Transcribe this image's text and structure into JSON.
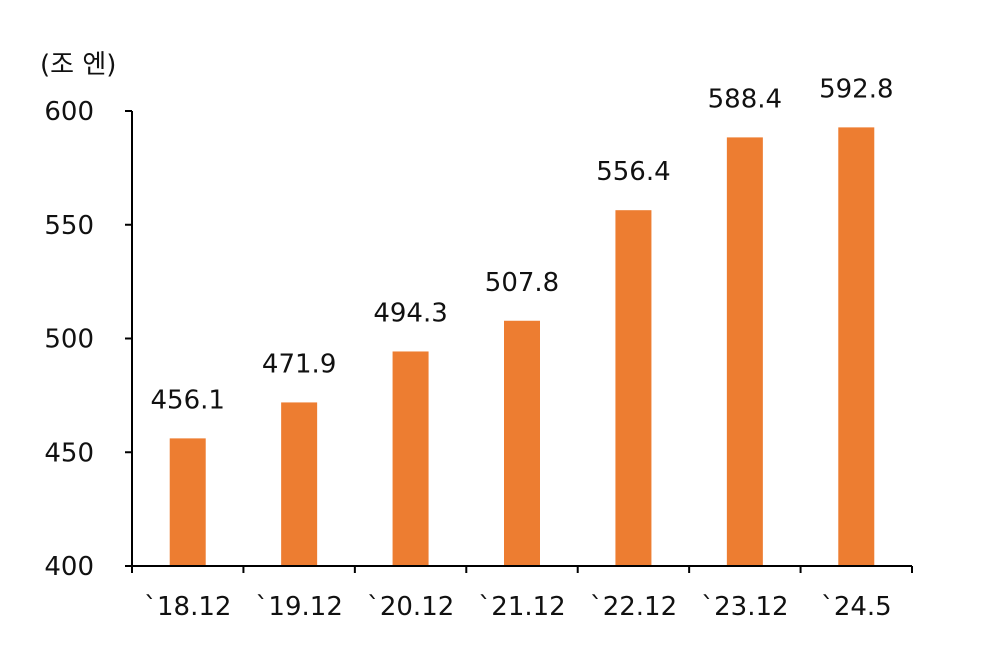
{
  "chart_data": {
    "type": "bar",
    "unit_label": "(조 엔)",
    "categories": [
      "`18.12",
      "`19.12",
      "`20.12",
      "`21.12",
      "`22.12",
      "`23.12",
      "`24.5"
    ],
    "values": [
      456.1,
      471.9,
      494.3,
      507.8,
      556.4,
      588.4,
      592.8
    ],
    "value_labels": [
      "456.1",
      "471.9",
      "494.3",
      "507.8",
      "556.4",
      "588.4",
      "592.8"
    ],
    "ylim": [
      400,
      600
    ],
    "yticks": [
      400,
      450,
      500,
      550,
      600
    ],
    "bar_color": "#ED7D31",
    "grid": false,
    "legend": "none"
  }
}
